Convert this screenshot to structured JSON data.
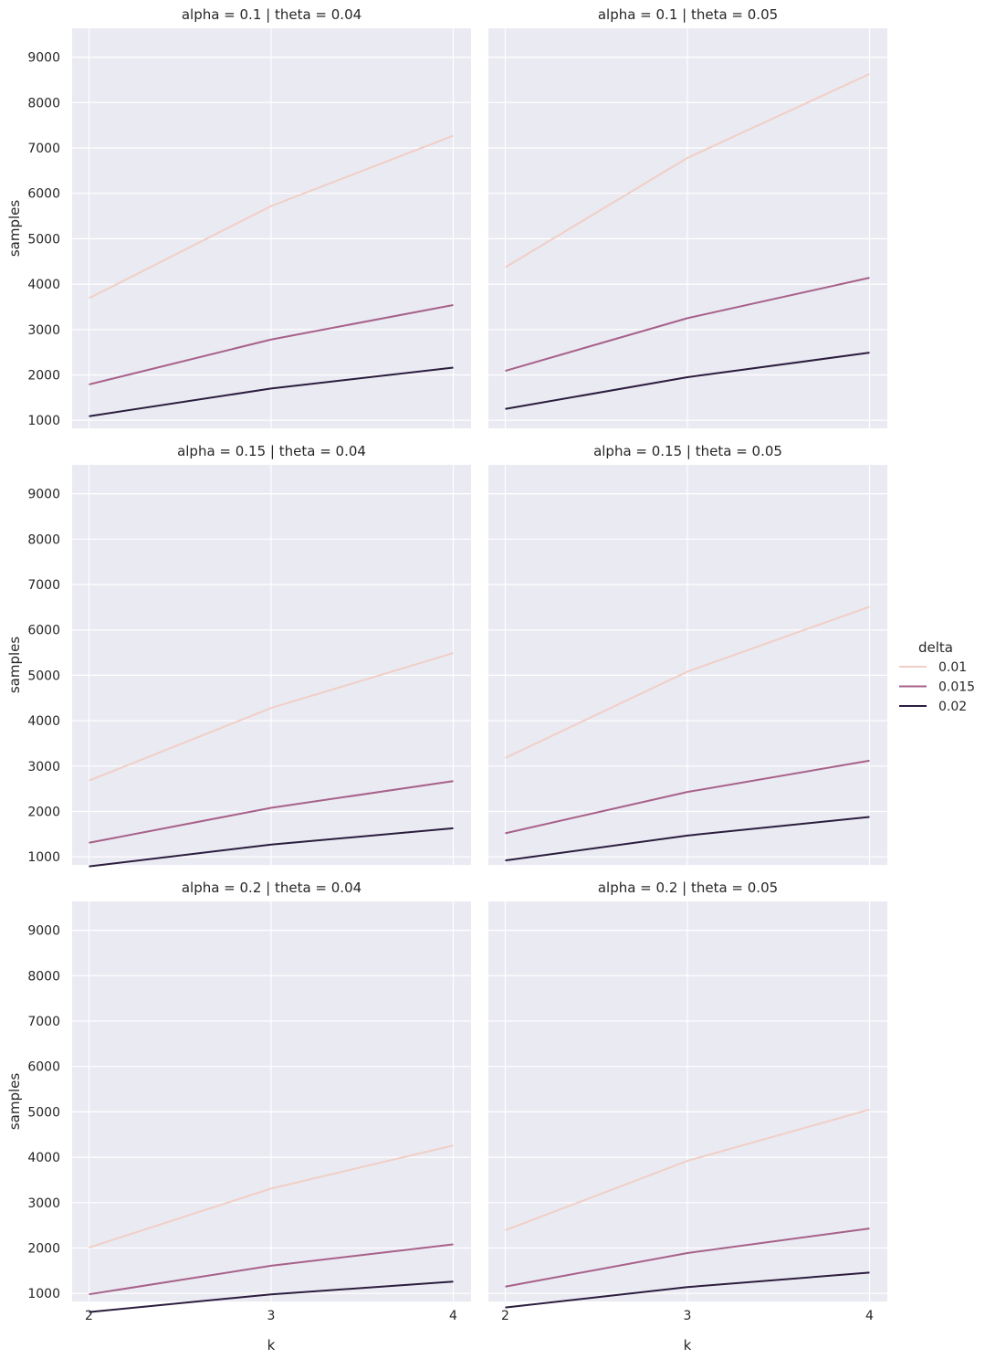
{
  "chart_data": {
    "type": "line",
    "layout": "facet grid, 3 rows x 2 columns",
    "x": [
      2,
      3,
      4
    ],
    "xlabel": "k",
    "ylabel": "samples",
    "xticks": [
      "2",
      "3",
      "4"
    ],
    "yticks": [
      "1000",
      "2000",
      "3000",
      "4000",
      "5000",
      "6000",
      "7000",
      "8000",
      "9000"
    ],
    "ylim": [
      200,
      9000
    ],
    "xlim": [
      1.9,
      4.1
    ],
    "grid": true,
    "background": "#eaeaf2",
    "gridColor": "#ffffff",
    "legend": {
      "title": "delta",
      "placement": "right",
      "entries": [
        {
          "label": "0.01",
          "color": "#f0cfc6"
        },
        {
          "label": "0.015",
          "color": "#a7618a"
        },
        {
          "label": "0.02",
          "color": "#2c1d3e"
        }
      ]
    },
    "panels": [
      {
        "title": "alpha = 0.1 | theta = 0.04",
        "series": [
          {
            "name": "0.01",
            "values": [
              3690,
              5720,
              7270
            ]
          },
          {
            "name": "0.015",
            "values": [
              1790,
              2780,
              3540
            ]
          },
          {
            "name": "0.02",
            "values": [
              1090,
              1700,
              2160
            ]
          }
        ]
      },
      {
        "title": "alpha = 0.1 | theta = 0.05",
        "series": [
          {
            "name": "0.01",
            "values": [
              4370,
              6780,
              8630
            ]
          },
          {
            "name": "0.015",
            "values": [
              2090,
              3250,
              4140
            ]
          },
          {
            "name": "0.02",
            "values": [
              1250,
              1950,
              2490
            ]
          }
        ]
      },
      {
        "title": "alpha = 0.15 | theta = 0.04",
        "series": [
          {
            "name": "0.01",
            "values": [
              2680,
              4280,
              5490
            ]
          },
          {
            "name": "0.015",
            "values": [
              1310,
              2080,
              2670
            ]
          },
          {
            "name": "0.02",
            "values": [
              790,
              1270,
              1630
            ]
          }
        ]
      },
      {
        "title": "alpha = 0.15 | theta = 0.05",
        "series": [
          {
            "name": "0.01",
            "values": [
              3180,
              5080,
              6510
            ]
          },
          {
            "name": "0.015",
            "values": [
              1520,
              2430,
              3120
            ]
          },
          {
            "name": "0.02",
            "values": [
              920,
              1470,
              1880
            ]
          }
        ]
      },
      {
        "title": "alpha = 0.2 | theta = 0.04",
        "series": [
          {
            "name": "0.01",
            "values": [
              2010,
              3310,
              4260
            ]
          },
          {
            "name": "0.015",
            "values": [
              980,
              1610,
              2080
            ]
          },
          {
            "name": "0.02",
            "values": [
              590,
              980,
              1260
            ]
          }
        ]
      },
      {
        "title": "alpha = 0.2 | theta = 0.05",
        "series": [
          {
            "name": "0.01",
            "values": [
              2390,
              3920,
              5050
            ]
          },
          {
            "name": "0.015",
            "values": [
              1150,
              1890,
              2430
            ]
          },
          {
            "name": "0.02",
            "values": [
              690,
              1140,
              1460
            ]
          }
        ]
      }
    ]
  }
}
